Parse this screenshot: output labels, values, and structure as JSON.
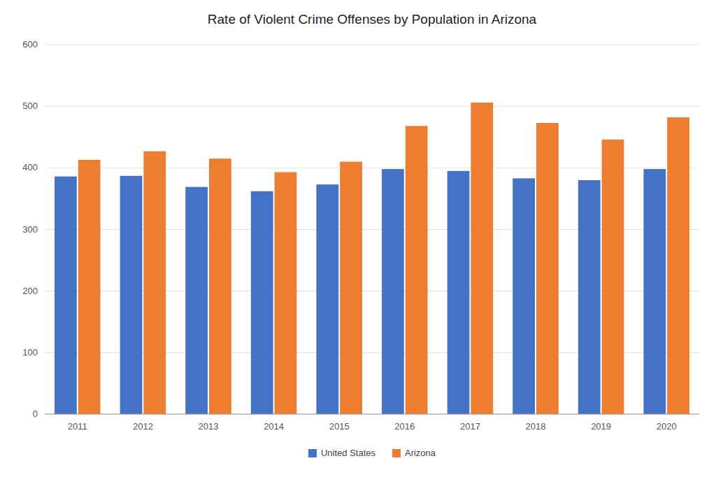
{
  "chart_data": {
    "type": "bar",
    "title": "Rate of Violent Crime Offenses by Population in Arizona",
    "categories": [
      "2011",
      "2012",
      "2013",
      "2014",
      "2015",
      "2016",
      "2017",
      "2018",
      "2019",
      "2020"
    ],
    "series": [
      {
        "name": "United States",
        "color": "#4472C4",
        "values": [
          386,
          387,
          369,
          362,
          373,
          398,
          395,
          383,
          380,
          398
        ]
      },
      {
        "name": "Arizona",
        "color": "#ED7D31",
        "values": [
          413,
          427,
          415,
          393,
          410,
          468,
          506,
          473,
          446,
          482
        ]
      }
    ],
    "ylim": [
      0,
      600
    ],
    "yticks": [
      0,
      100,
      200,
      300,
      400,
      500,
      600
    ],
    "grid": true,
    "legend": "bottom"
  }
}
